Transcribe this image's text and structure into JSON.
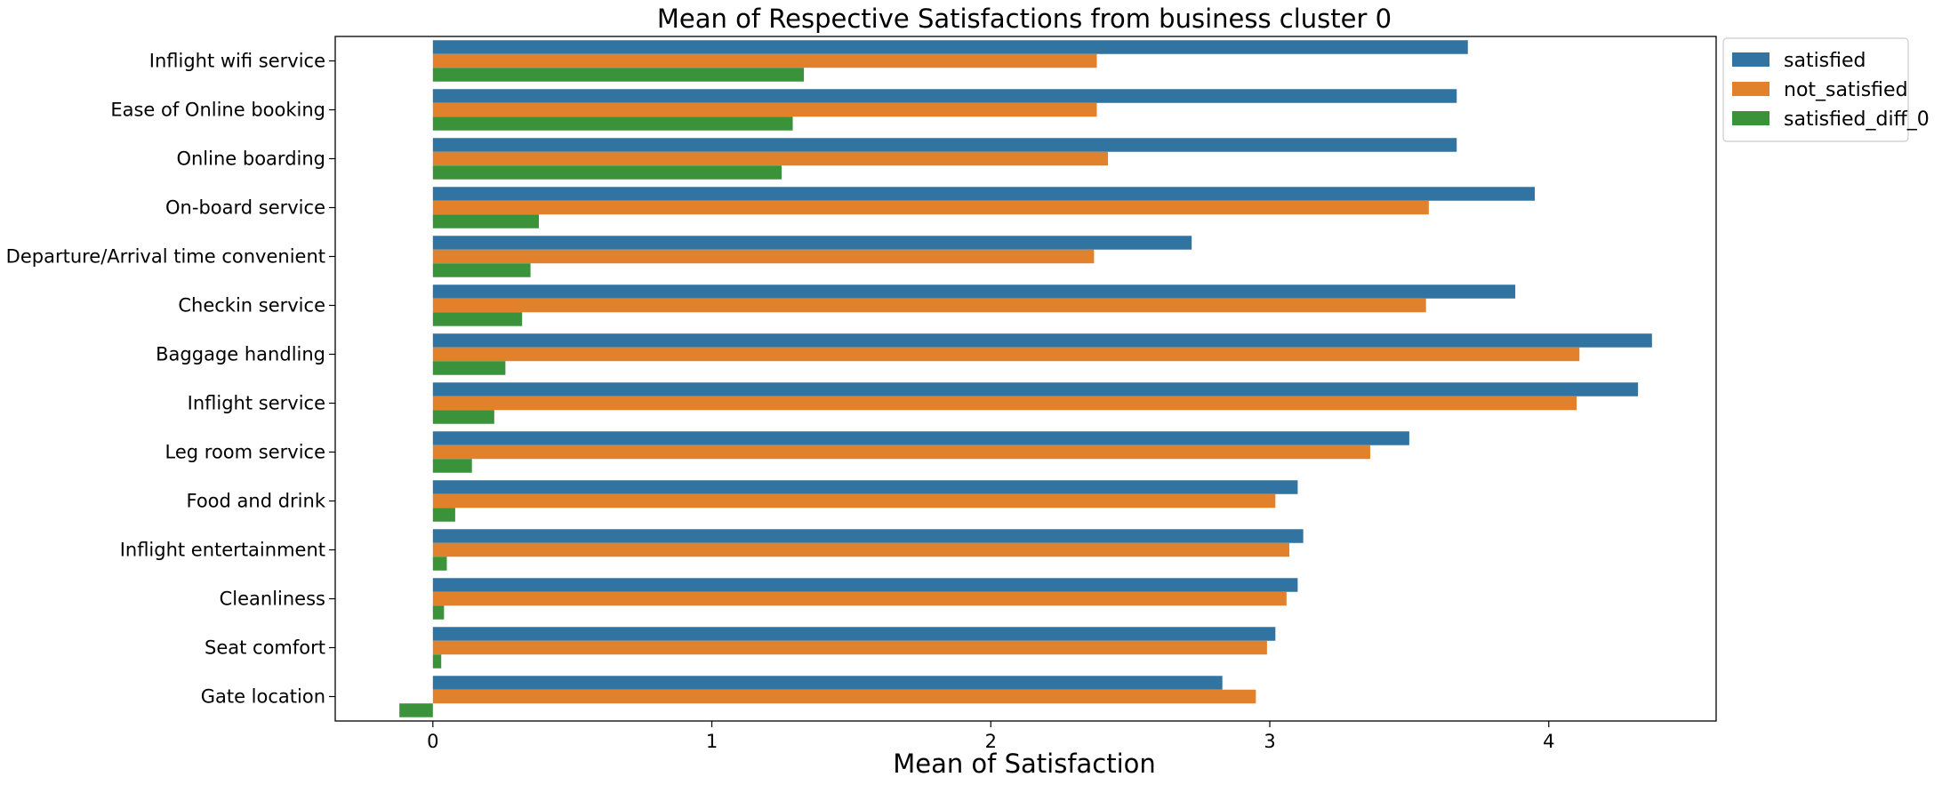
{
  "chart_data": {
    "type": "bar",
    "orientation": "horizontal",
    "title": "Mean of Respective Satisfactions from business cluster 0",
    "xlabel": "Mean of Satisfaction",
    "ylabel": "",
    "xlim": [
      -0.35,
      4.6
    ],
    "xticks": [
      0,
      1,
      2,
      3,
      4
    ],
    "grid": false,
    "legend_position": "outside-top-right",
    "categories": [
      "Inflight wifi service",
      "Ease of Online booking",
      "Online boarding",
      "On-board service",
      "Departure/Arrival time convenient",
      "Checkin service",
      "Baggage handling",
      "Inflight service",
      "Leg room service",
      "Food and drink",
      "Inflight entertainment",
      "Cleanliness",
      "Seat comfort",
      "Gate location"
    ],
    "series": [
      {
        "name": "satisfied",
        "color": "#3274a1",
        "values": [
          3.71,
          3.67,
          3.67,
          3.95,
          2.72,
          3.88,
          4.37,
          4.32,
          3.5,
          3.1,
          3.12,
          3.1,
          3.02,
          2.83
        ]
      },
      {
        "name": "not_satisfied",
        "color": "#e1812c",
        "values": [
          2.38,
          2.38,
          2.42,
          3.57,
          2.37,
          3.56,
          4.11,
          4.1,
          3.36,
          3.02,
          3.07,
          3.06,
          2.99,
          2.95
        ]
      },
      {
        "name": "satisfied_diff_0",
        "color": "#3a923a",
        "values": [
          1.33,
          1.29,
          1.25,
          0.38,
          0.35,
          0.32,
          0.26,
          0.22,
          0.14,
          0.08,
          0.05,
          0.04,
          0.03,
          -0.12
        ]
      }
    ]
  }
}
